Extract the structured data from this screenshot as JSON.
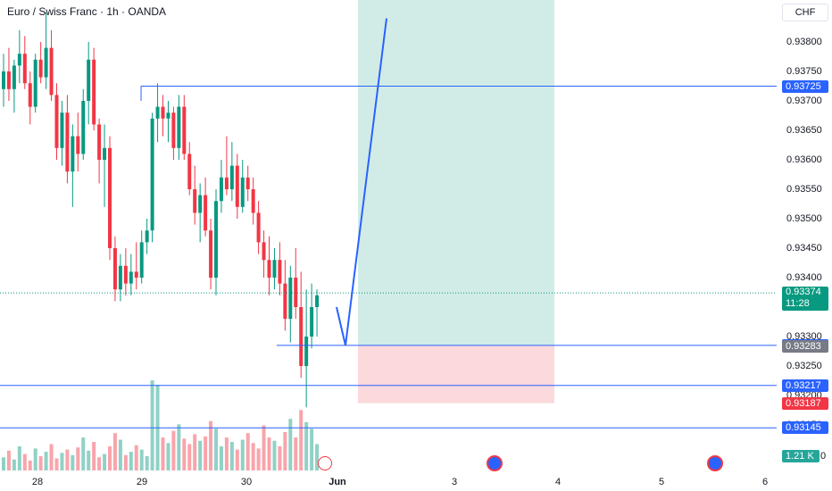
{
  "header": {
    "title": "Euro / Swiss Franc · 1h · OANDA",
    "currency": "CHF"
  },
  "price_axis": {
    "ticks": [
      "0.93800",
      "0.93750",
      "0.93700",
      "0.93650",
      "0.93600",
      "0.93550",
      "0.93500",
      "0.93450",
      "0.93400",
      "0.93300",
      "0.93250",
      "0.93200",
      "0.93150"
    ],
    "tags": [
      {
        "label": "0.93725",
        "color": "#2962ff"
      },
      {
        "label": "0.93285",
        "color": "#2962ff"
      },
      {
        "label": "0.93283",
        "color": "#787b86"
      },
      {
        "label": "0.93217",
        "color": "#2962ff"
      },
      {
        "label": "0.93187",
        "color": "#f23645"
      },
      {
        "label": "0.93145",
        "color": "#2962ff"
      }
    ],
    "current_price": "0.93374",
    "countdown": "11:28",
    "volume_label": "1.21 K",
    "volume_tick": "0"
  },
  "time_axis": {
    "labels": [
      "28",
      "29",
      "30",
      "Jun",
      "3",
      "4",
      "5",
      "6"
    ]
  },
  "chart_data": {
    "type": "candlestick",
    "title": "Euro / Swiss Franc · 1h · OANDA",
    "price_range": [
      0.9312,
      0.9384
    ],
    "horizontal_lines": [
      0.93725,
      0.93285,
      0.93217,
      0.93145
    ],
    "current_price": 0.93374,
    "position": {
      "entry": 0.93285,
      "stop": 0.93187,
      "target_above": 0.9384
    },
    "projection": [
      0.9335,
      0.93285,
      0.9384
    ],
    "candles": [
      [
        0.9372,
        0.9378,
        0.9369,
        0.9375
      ],
      [
        0.9375,
        0.9379,
        0.937,
        0.9372
      ],
      [
        0.9372,
        0.9377,
        0.9368,
        0.9376
      ],
      [
        0.9376,
        0.9382,
        0.9373,
        0.9378
      ],
      [
        0.9378,
        0.9381,
        0.9372,
        0.9373
      ],
      [
        0.9373,
        0.9375,
        0.9366,
        0.9369
      ],
      [
        0.9369,
        0.9378,
        0.9368,
        0.9377
      ],
      [
        0.9377,
        0.938,
        0.9373,
        0.9374
      ],
      [
        0.9374,
        0.9385,
        0.9372,
        0.9379
      ],
      [
        0.9379,
        0.9382,
        0.937,
        0.9371
      ],
      [
        0.9371,
        0.9373,
        0.936,
        0.9362
      ],
      [
        0.9362,
        0.937,
        0.9359,
        0.9368
      ],
      [
        0.9368,
        0.9371,
        0.9356,
        0.9358
      ],
      [
        0.9358,
        0.9366,
        0.9352,
        0.9364
      ],
      [
        0.9364,
        0.9368,
        0.9358,
        0.9361
      ],
      [
        0.9361,
        0.9372,
        0.936,
        0.937
      ],
      [
        0.937,
        0.938,
        0.9366,
        0.9377
      ],
      [
        0.9377,
        0.9379,
        0.9365,
        0.9366
      ],
      [
        0.9366,
        0.9367,
        0.9356,
        0.936
      ],
      [
        0.936,
        0.9366,
        0.9352,
        0.9362
      ],
      [
        0.9362,
        0.9364,
        0.9343,
        0.9345
      ],
      [
        0.9345,
        0.9347,
        0.9336,
        0.9338
      ],
      [
        0.9338,
        0.9344,
        0.9336,
        0.9342
      ],
      [
        0.9342,
        0.9345,
        0.9337,
        0.9339
      ],
      [
        0.9339,
        0.9344,
        0.9337,
        0.9341
      ],
      [
        0.9341,
        0.9346,
        0.9338,
        0.934
      ],
      [
        0.934,
        0.9348,
        0.9339,
        0.9346
      ],
      [
        0.9346,
        0.935,
        0.9344,
        0.9348
      ],
      [
        0.9348,
        0.9368,
        0.9346,
        0.9367
      ],
      [
        0.9367,
        0.9373,
        0.9363,
        0.9369
      ],
      [
        0.9369,
        0.9371,
        0.9364,
        0.9367
      ],
      [
        0.9367,
        0.937,
        0.9363,
        0.9368
      ],
      [
        0.9368,
        0.9369,
        0.936,
        0.9362
      ],
      [
        0.9362,
        0.9371,
        0.936,
        0.9369
      ],
      [
        0.9369,
        0.9371,
        0.936,
        0.9361
      ],
      [
        0.9361,
        0.9363,
        0.9354,
        0.9355
      ],
      [
        0.9355,
        0.9359,
        0.9349,
        0.9351
      ],
      [
        0.9351,
        0.9356,
        0.9346,
        0.9354
      ],
      [
        0.9354,
        0.9357,
        0.9347,
        0.9348
      ],
      [
        0.9348,
        0.935,
        0.9338,
        0.934
      ],
      [
        0.934,
        0.9355,
        0.9337,
        0.9353
      ],
      [
        0.9353,
        0.936,
        0.9351,
        0.9357
      ],
      [
        0.9357,
        0.9364,
        0.9354,
        0.9355
      ],
      [
        0.9355,
        0.9363,
        0.9353,
        0.9359
      ],
      [
        0.9359,
        0.9361,
        0.935,
        0.9352
      ],
      [
        0.9352,
        0.936,
        0.9351,
        0.9357
      ],
      [
        0.9357,
        0.9359,
        0.9353,
        0.9355
      ],
      [
        0.9355,
        0.9357,
        0.9349,
        0.9351
      ],
      [
        0.9351,
        0.9353,
        0.9344,
        0.9346
      ],
      [
        0.9346,
        0.9348,
        0.934,
        0.9343
      ],
      [
        0.9343,
        0.9347,
        0.9337,
        0.934
      ],
      [
        0.934,
        0.9345,
        0.9338,
        0.9343
      ],
      [
        0.9343,
        0.9346,
        0.9337,
        0.9339
      ],
      [
        0.9339,
        0.9343,
        0.9331,
        0.9333
      ],
      [
        0.9333,
        0.9342,
        0.9329,
        0.934
      ],
      [
        0.934,
        0.9345,
        0.9333,
        0.9335
      ],
      [
        0.9335,
        0.9341,
        0.9323,
        0.9325
      ],
      [
        0.9325,
        0.9338,
        0.9318,
        0.933
      ],
      [
        0.933,
        0.9339,
        0.9328,
        0.9335
      ],
      [
        0.9335,
        0.9338,
        0.933,
        0.9337
      ]
    ],
    "volumes": [
      0.12,
      0.18,
      0.1,
      0.22,
      0.15,
      0.09,
      0.2,
      0.13,
      0.17,
      0.24,
      0.11,
      0.16,
      0.19,
      0.14,
      0.21,
      0.3,
      0.18,
      0.26,
      0.12,
      0.15,
      0.22,
      0.34,
      0.28,
      0.14,
      0.17,
      0.23,
      0.19,
      0.13,
      0.82,
      0.78,
      0.3,
      0.25,
      0.36,
      0.42,
      0.29,
      0.24,
      0.33,
      0.27,
      0.31,
      0.45,
      0.38,
      0.22,
      0.3,
      0.26,
      0.19,
      0.28,
      0.34,
      0.25,
      0.2,
      0.41,
      0.3,
      0.27,
      0.22,
      0.35,
      0.47,
      0.3,
      0.55,
      0.44,
      0.38,
      0.24
    ],
    "volume_range": [
      0,
      1.3
    ]
  },
  "colors": {
    "up": "#089981",
    "down": "#f23645",
    "line": "#2962ff",
    "profit_zone": "#d1ece6",
    "loss_zone": "#fbd9dc"
  }
}
